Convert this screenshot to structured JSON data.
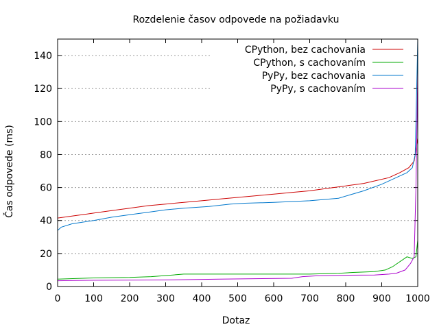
{
  "chart_data": {
    "type": "line",
    "title": "Rozdelenie časov odpovede na požiadavku",
    "xlabel": "Dotaz",
    "ylabel": "Čas odpovede (ms)",
    "xlim": [
      0,
      1000
    ],
    "ylim": [
      0,
      150
    ],
    "x_ticks": [
      0,
      100,
      200,
      300,
      400,
      500,
      600,
      700,
      800,
      900,
      1000
    ],
    "y_ticks": [
      0,
      20,
      40,
      60,
      80,
      100,
      120,
      140
    ],
    "grid": "horizontal dotted",
    "legend_position": "top-right",
    "series": [
      {
        "name": "CPython, bez cachovania",
        "color": "#cc0000",
        "points": [
          [
            0,
            41.5
          ],
          [
            50,
            43
          ],
          [
            100,
            44.5
          ],
          [
            150,
            46
          ],
          [
            200,
            47.5
          ],
          [
            250,
            49
          ],
          [
            300,
            50
          ],
          [
            350,
            51
          ],
          [
            400,
            52
          ],
          [
            450,
            53
          ],
          [
            500,
            54
          ],
          [
            550,
            55
          ],
          [
            600,
            56
          ],
          [
            650,
            57
          ],
          [
            700,
            58
          ],
          [
            750,
            59.5
          ],
          [
            800,
            61
          ],
          [
            850,
            62.5
          ],
          [
            880,
            64
          ],
          [
            920,
            66
          ],
          [
            950,
            69
          ],
          [
            975,
            72
          ],
          [
            990,
            76
          ],
          [
            1000,
            90
          ]
        ]
      },
      {
        "name": "CPython, s cachovaním",
        "color": "#00aa00",
        "points": [
          [
            0,
            4.5
          ],
          [
            100,
            5.2
          ],
          [
            200,
            5.5
          ],
          [
            260,
            6
          ],
          [
            320,
            7
          ],
          [
            350,
            7.5
          ],
          [
            500,
            7.5
          ],
          [
            600,
            7.5
          ],
          [
            700,
            7.5
          ],
          [
            780,
            8
          ],
          [
            820,
            8.5
          ],
          [
            880,
            9
          ],
          [
            910,
            10
          ],
          [
            930,
            12
          ],
          [
            950,
            15
          ],
          [
            970,
            18
          ],
          [
            985,
            17
          ],
          [
            995,
            18
          ],
          [
            1000,
            28
          ]
        ]
      },
      {
        "name": "PyPy, bez cachovania",
        "color": "#0077cc",
        "points": [
          [
            0,
            34
          ],
          [
            10,
            36
          ],
          [
            40,
            38
          ],
          [
            100,
            40
          ],
          [
            150,
            42
          ],
          [
            200,
            43.5
          ],
          [
            250,
            45
          ],
          [
            300,
            46.5
          ],
          [
            350,
            47.5
          ],
          [
            420,
            48.5
          ],
          [
            480,
            50
          ],
          [
            520,
            50.5
          ],
          [
            600,
            51
          ],
          [
            700,
            52
          ],
          [
            780,
            53.5
          ],
          [
            850,
            58
          ],
          [
            900,
            62
          ],
          [
            940,
            66
          ],
          [
            970,
            69
          ],
          [
            985,
            72
          ],
          [
            993,
            80
          ],
          [
            998,
            130
          ],
          [
            1000,
            150
          ]
        ]
      },
      {
        "name": "PyPy, s cachovaním",
        "color": "#aa00cc",
        "points": [
          [
            0,
            3.5
          ],
          [
            100,
            3.8
          ],
          [
            300,
            4
          ],
          [
            450,
            4.5
          ],
          [
            650,
            5
          ],
          [
            680,
            6
          ],
          [
            720,
            6.5
          ],
          [
            800,
            6.8
          ],
          [
            880,
            7
          ],
          [
            920,
            7.5
          ],
          [
            940,
            8
          ],
          [
            965,
            10
          ],
          [
            980,
            14
          ],
          [
            990,
            18
          ],
          [
            995,
            60
          ],
          [
            1000,
            130
          ]
        ]
      }
    ]
  }
}
